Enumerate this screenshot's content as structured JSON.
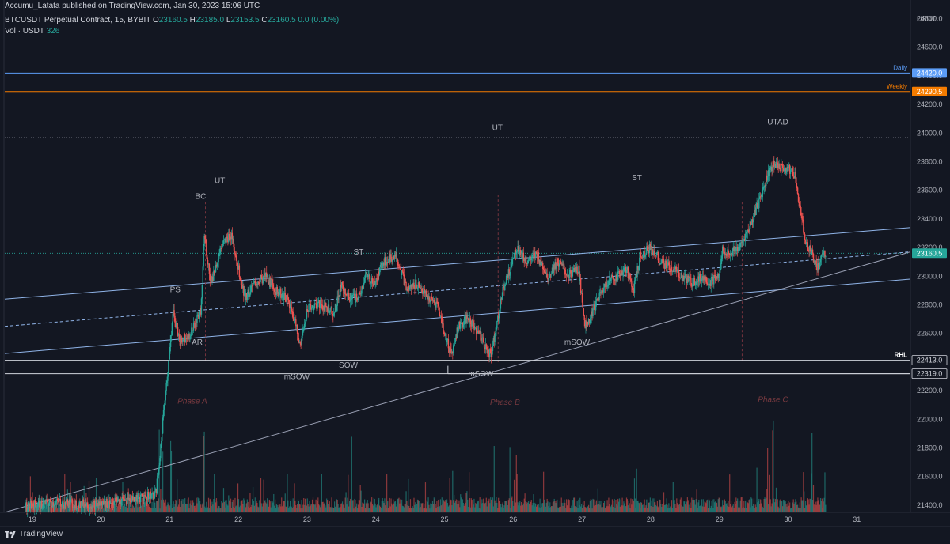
{
  "header": {
    "publish_line": "Accumu_Latata published on TradingView.com, Jan 30, 2023 15:06 UTC",
    "symbol": "BTCUSDT Perpetual Contract, 15, BYBIT",
    "o_label": "O",
    "o_value": "23160.5",
    "h_label": "H",
    "h_value": "23185.0",
    "l_label": "L",
    "l_value": "23153.5",
    "c_label": "C",
    "c_value": "23160.5",
    "change": "0.0 (0.00%)",
    "vol_label": "Vol · USDT",
    "vol_value": "326"
  },
  "footer": {
    "brand": "TradingView"
  },
  "colors": {
    "background": "#131722",
    "up": "#26a69a",
    "down": "#ef5350",
    "daily": "#5b9cf6",
    "weekly": "#f57c00",
    "channel": "#90b4e8",
    "trendline": "#9aa0b4",
    "phase": "#7a3a40"
  },
  "chart_data": {
    "type": "candlestick",
    "interval": "15",
    "currency": "USDT",
    "y_axis_label": "USDT",
    "ylim": [
      21350,
      24930
    ],
    "y_ticks": [
      21400,
      21600,
      21800,
      22000,
      22200,
      22400,
      22600,
      22800,
      23000,
      23200,
      23400,
      23600,
      23800,
      24000,
      24200,
      24400,
      24600,
      24800
    ],
    "y_tick_labels": [
      "21400.0",
      "21600.0",
      "21800.0",
      "22000.0",
      "22200.0",
      "22400.0",
      "22600.0",
      "22800.0",
      "23000.0",
      "23200.0",
      "23400.0",
      "23600.0",
      "23800.0",
      "24000.0",
      "24200.0",
      "24400.0",
      "24600.0",
      "24800.0"
    ],
    "x_domain": [
      18.6,
      31.78
    ],
    "x_ticks": [
      19,
      20,
      21,
      22,
      23,
      24,
      25,
      26,
      27,
      28,
      29,
      30,
      31
    ],
    "x_tick_labels": [
      "19",
      "20",
      "21",
      "22",
      "23",
      "24",
      "25",
      "26",
      "27",
      "28",
      "29",
      "30",
      "31"
    ],
    "price_path": [
      [
        18.9,
        21390
      ],
      [
        19.4,
        21420
      ],
      [
        19.9,
        21400
      ],
      [
        20.4,
        21440
      ],
      [
        20.8,
        21480
      ],
      [
        20.85,
        21700
      ],
      [
        20.92,
        22100
      ],
      [
        21.0,
        22480
      ],
      [
        21.05,
        22750
      ],
      [
        21.15,
        22550
      ],
      [
        21.3,
        22600
      ],
      [
        21.45,
        22750
      ],
      [
        21.48,
        23000
      ],
      [
        21.5,
        23300
      ],
      [
        21.6,
        22950
      ],
      [
        21.75,
        23200
      ],
      [
        21.9,
        23300
      ],
      [
        22.0,
        23050
      ],
      [
        22.1,
        22850
      ],
      [
        22.25,
        22950
      ],
      [
        22.4,
        23000
      ],
      [
        22.55,
        22900
      ],
      [
        22.7,
        22850
      ],
      [
        22.85,
        22650
      ],
      [
        22.9,
        22500
      ],
      [
        23.0,
        22780
      ],
      [
        23.2,
        22800
      ],
      [
        23.4,
        22750
      ],
      [
        23.5,
        22950
      ],
      [
        23.6,
        22850
      ],
      [
        23.75,
        22850
      ],
      [
        23.85,
        23000
      ],
      [
        24.0,
        22950
      ],
      [
        24.1,
        23100
      ],
      [
        24.3,
        23150
      ],
      [
        24.45,
        22900
      ],
      [
        24.6,
        22950
      ],
      [
        24.75,
        22850
      ],
      [
        24.9,
        22800
      ],
      [
        25.0,
        22600
      ],
      [
        25.1,
        22450
      ],
      [
        25.2,
        22650
      ],
      [
        25.35,
        22700
      ],
      [
        25.5,
        22600
      ],
      [
        25.6,
        22500
      ],
      [
        25.68,
        22450
      ],
      [
        25.75,
        22650
      ],
      [
        25.85,
        22900
      ],
      [
        25.95,
        23050
      ],
      [
        26.05,
        23200
      ],
      [
        26.2,
        23100
      ],
      [
        26.35,
        23150
      ],
      [
        26.5,
        23000
      ],
      [
        26.65,
        23100
      ],
      [
        26.8,
        23000
      ],
      [
        26.95,
        23050
      ],
      [
        27.05,
        22650
      ],
      [
        27.2,
        22800
      ],
      [
        27.35,
        22950
      ],
      [
        27.5,
        23000
      ],
      [
        27.65,
        23050
      ],
      [
        27.75,
        22900
      ],
      [
        27.85,
        23150
      ],
      [
        28.0,
        23200
      ],
      [
        28.15,
        23100
      ],
      [
        28.3,
        23050
      ],
      [
        28.45,
        23000
      ],
      [
        28.6,
        22950
      ],
      [
        28.75,
        23000
      ],
      [
        28.85,
        22950
      ],
      [
        29.0,
        23000
      ],
      [
        29.05,
        23200
      ],
      [
        29.15,
        23150
      ],
      [
        29.3,
        23200
      ],
      [
        29.45,
        23350
      ],
      [
        29.6,
        23550
      ],
      [
        29.7,
        23700
      ],
      [
        29.8,
        23800
      ],
      [
        29.9,
        23750
      ],
      [
        30.0,
        23750
      ],
      [
        30.1,
        23700
      ],
      [
        30.2,
        23400
      ],
      [
        30.25,
        23250
      ],
      [
        30.35,
        23150
      ],
      [
        30.42,
        23050
      ],
      [
        30.5,
        23150
      ],
      [
        30.55,
        23160.5
      ]
    ],
    "volume_max": 326,
    "horizontal_levels": [
      {
        "name": "Daily",
        "price": 24420.0,
        "label": "24420.0",
        "color": "#5b9cf6"
      },
      {
        "name": "Weekly",
        "price": 24290.5,
        "label": "24290.5",
        "color": "#f57c00"
      },
      {
        "name": "RHL",
        "price": 22413.0,
        "label": "22413.0",
        "color": "#d1d4dc"
      },
      {
        "name": "",
        "price": 22319.0,
        "label": "22319.0",
        "color": "#d1d4dc"
      }
    ],
    "last_price": {
      "price": 23160.5,
      "label": "23160.5"
    },
    "dotted_high": 23970,
    "channel_lines": [
      {
        "name": "upper",
        "points": [
          [
            18.6,
            22840
          ],
          [
            31.78,
            23340
          ]
        ]
      },
      {
        "name": "median",
        "points": [
          [
            18.6,
            22650
          ],
          [
            31.78,
            23170
          ]
        ],
        "dashed": true
      },
      {
        "name": "lower",
        "points": [
          [
            18.6,
            22460
          ],
          [
            31.78,
            22980
          ]
        ]
      }
    ],
    "trendline": {
      "points": [
        [
          18.6,
          21350
        ],
        [
          31.78,
          23170
        ]
      ]
    },
    "range_bottom": {
      "points": [
        [
          25.05,
          22319
        ],
        [
          31.78,
          22319
        ]
      ]
    },
    "event_markers": [
      {
        "x": 21.52,
        "y_from": 22400,
        "y_to": 23520
      },
      {
        "x": 25.78,
        "y_from": 22400,
        "y_to": 23570
      },
      {
        "x": 29.33,
        "y_from": 22400,
        "y_to": 23520
      }
    ],
    "annotations": [
      {
        "text": "PS",
        "x": 21.08,
        "y": 22890
      },
      {
        "text": "BC",
        "x": 21.45,
        "y": 23540
      },
      {
        "text": "UT",
        "x": 21.73,
        "y": 23650
      },
      {
        "text": "AR",
        "x": 21.4,
        "y": 22520
      },
      {
        "text": "ST",
        "x": 23.75,
        "y": 23150
      },
      {
        "text": "SOW",
        "x": 23.6,
        "y": 22360
      },
      {
        "text": "mSOW",
        "x": 22.85,
        "y": 22280
      },
      {
        "text": "UT",
        "x": 25.77,
        "y": 24020
      },
      {
        "text": "mSOW",
        "x": 25.53,
        "y": 22300
      },
      {
        "text": "mSOW",
        "x": 26.93,
        "y": 22520
      },
      {
        "text": "ST",
        "x": 27.8,
        "y": 23670
      },
      {
        "text": "UTAD",
        "x": 29.85,
        "y": 24060
      }
    ],
    "phase_labels": [
      {
        "text": "Phase A",
        "x": 21.33,
        "y": 22110
      },
      {
        "text": "Phase B",
        "x": 25.88,
        "y": 22100
      },
      {
        "text": "Phase C",
        "x": 29.78,
        "y": 22120
      }
    ],
    "legend": [
      {
        "label": "Daily",
        "price": 24420.0
      },
      {
        "label": "Weekly",
        "price": 24290.5
      },
      {
        "label": "RHL",
        "price": 22413.0
      }
    ]
  }
}
